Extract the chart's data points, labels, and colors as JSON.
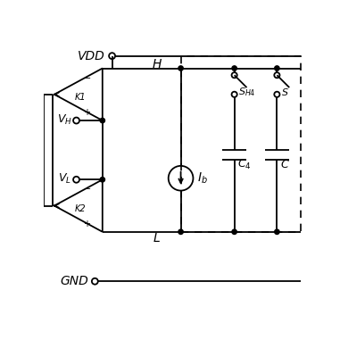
{
  "bg_color": "#ffffff",
  "line_color": "#000000",
  "fig_width": 3.81,
  "fig_height": 3.81,
  "dpi": 100,
  "vdd_label": "VDD",
  "gnd_label": "GND",
  "vh_label": "$V_H$",
  "vl_label": "$V_L$",
  "h_label": "H",
  "l_label": "L",
  "ib_label": "$I_b$",
  "k1_label": "K1",
  "k2_label": "K2",
  "sh4_label": "$S_{H4}$",
  "c4_label": "$C_4$",
  "s_label": "$S$",
  "c_label": "$C$"
}
